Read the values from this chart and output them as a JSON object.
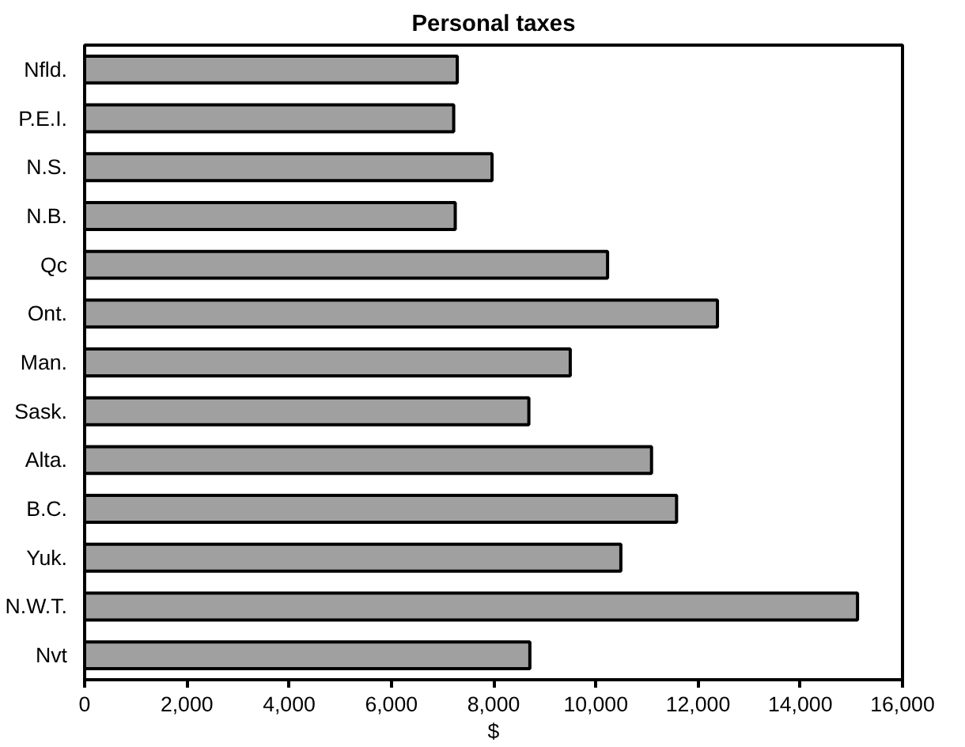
{
  "chart_data": {
    "type": "bar",
    "orientation": "horizontal",
    "title": "Personal taxes",
    "xlabel": "$",
    "categories": [
      "Nfld.",
      "P.E.I.",
      "N.S.",
      "N.B.",
      "Qc",
      "Ont.",
      "Man.",
      "Sask.",
      "Alta.",
      "B.C.",
      "Yuk.",
      "N.W.T.",
      "Nvt"
    ],
    "values": [
      7290,
      7220,
      7970,
      7250,
      10230,
      12380,
      9500,
      8690,
      11090,
      11580,
      10490,
      15120,
      8710
    ],
    "color": "#a0a0a0",
    "xlim": [
      0,
      16000
    ],
    "xticks": [
      {
        "value": 0,
        "label": "0"
      },
      {
        "value": 2000,
        "label": "2,000"
      },
      {
        "value": 4000,
        "label": "4,000"
      },
      {
        "value": 6000,
        "label": "6,000"
      },
      {
        "value": 8000,
        "label": "8,000"
      },
      {
        "value": 10000,
        "label": "10,000"
      },
      {
        "value": 12000,
        "label": "12,000"
      },
      {
        "value": 14000,
        "label": "14,000"
      },
      {
        "value": 16000,
        "label": "16,000"
      }
    ],
    "grid": false
  }
}
